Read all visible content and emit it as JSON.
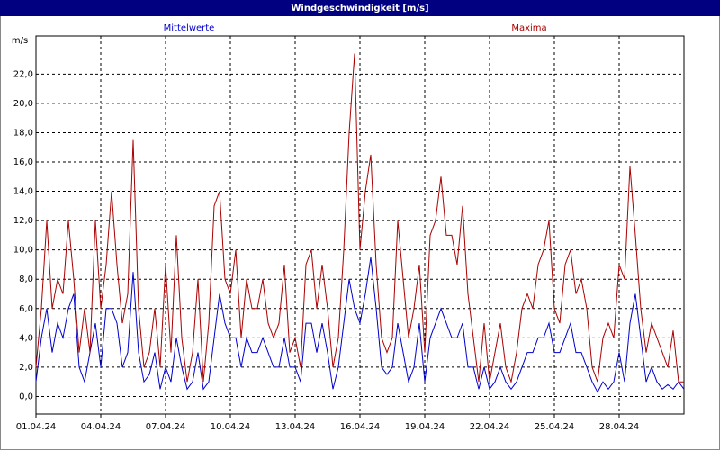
{
  "chart_data": {
    "type": "line",
    "title": "Windgeschwindigkeit [m/s]",
    "ylabel": "m/s",
    "x": [
      0,
      0.25,
      0.5,
      0.75,
      1,
      1.25,
      1.5,
      1.75,
      2,
      2.25,
      2.5,
      2.75,
      3,
      3.25,
      3.5,
      3.75,
      4,
      4.25,
      4.5,
      4.75,
      5,
      5.25,
      5.5,
      5.75,
      6,
      6.25,
      6.5,
      6.75,
      7,
      7.25,
      7.5,
      7.75,
      8,
      8.25,
      8.5,
      8.75,
      9,
      9.25,
      9.5,
      9.75,
      10,
      10.25,
      10.5,
      10.75,
      11,
      11.25,
      11.5,
      11.75,
      12,
      12.25,
      12.5,
      12.75,
      13,
      13.25,
      13.5,
      13.75,
      14,
      14.25,
      14.5,
      14.75,
      15,
      15.25,
      15.5,
      15.75,
      16,
      16.25,
      16.5,
      16.75,
      17,
      17.25,
      17.5,
      17.75,
      18,
      18.25,
      18.5,
      18.75,
      19,
      19.25,
      19.5,
      19.75,
      20,
      20.25,
      20.5,
      20.75,
      21,
      21.25,
      21.5,
      21.75,
      22,
      22.25,
      22.5,
      22.75,
      23,
      23.25,
      23.5,
      23.75,
      24,
      24.25,
      24.5,
      24.75,
      25,
      25.25,
      25.5,
      25.75,
      26,
      26.25,
      26.5,
      26.75,
      27,
      27.25,
      27.5,
      27.75,
      28,
      28.25,
      28.5,
      28.75,
      29,
      29.25,
      29.5,
      29.75,
      30
    ],
    "series": [
      {
        "name": "Mittelwerte",
        "color": "#0000cc",
        "values": [
          1,
          4,
          6,
          3,
          5,
          4,
          6,
          7,
          2,
          1,
          3,
          5,
          2,
          6,
          6,
          5,
          2,
          3,
          8.5,
          3,
          1,
          1.5,
          3,
          0.5,
          2,
          1,
          4,
          2,
          0.5,
          1,
          3,
          0.5,
          1,
          4,
          7,
          5,
          4,
          4,
          2,
          4,
          3,
          3,
          4,
          3,
          2,
          2,
          4,
          2,
          2,
          1,
          5,
          5,
          3,
          5,
          3,
          0.5,
          2,
          5,
          8,
          6,
          5,
          7,
          9.5,
          6,
          2,
          1.5,
          2,
          5,
          3,
          1,
          2,
          5,
          1,
          4,
          5,
          6,
          5,
          4,
          4,
          5,
          2,
          2,
          0.5,
          2,
          0.5,
          1,
          2,
          1,
          0.5,
          1,
          2,
          3,
          3,
          4,
          4,
          5,
          3,
          3,
          4,
          5,
          3,
          3,
          2,
          1,
          0.3,
          1,
          0.5,
          1,
          3,
          1,
          5,
          7,
          4,
          1,
          2,
          1,
          0.5,
          0.8,
          0.5,
          1,
          0.5
        ]
      },
      {
        "name": "Maxima",
        "color": "#aa0000",
        "values": [
          2,
          6,
          12,
          6,
          8,
          7,
          12,
          8,
          3,
          6,
          3,
          12,
          6,
          9,
          14,
          9,
          5,
          7,
          17.5,
          6,
          2,
          3,
          6,
          2,
          9,
          3,
          11,
          4,
          1,
          3,
          8,
          1,
          5,
          13,
          14,
          8,
          7,
          10,
          4,
          8,
          6,
          6,
          8,
          5,
          4,
          5,
          9,
          3,
          4,
          2,
          9,
          10,
          6,
          9,
          6,
          2,
          4,
          10,
          18,
          23.4,
          10,
          14,
          16.5,
          9,
          4,
          3,
          4,
          12,
          8,
          4,
          6,
          9,
          3,
          11,
          12,
          15,
          11,
          11,
          9,
          13,
          7,
          4,
          1,
          5,
          1,
          3,
          5,
          2,
          1,
          3,
          6,
          7,
          6,
          9,
          10,
          12,
          6,
          5,
          9,
          10,
          7,
          8,
          6,
          2,
          1,
          4,
          5,
          4,
          9,
          8,
          15.7,
          11,
          6,
          3,
          5,
          4,
          3,
          2,
          4.5,
          1,
          1
        ]
      }
    ],
    "xlim": [
      0,
      30
    ],
    "xticks": [
      {
        "value": 0,
        "label": "01.04.24"
      },
      {
        "value": 3,
        "label": "04.04.24"
      },
      {
        "value": 6,
        "label": "07.04.24"
      },
      {
        "value": 9,
        "label": "10.04.24"
      },
      {
        "value": 12,
        "label": "13.04.24"
      },
      {
        "value": 15,
        "label": "16.04.24"
      },
      {
        "value": 18,
        "label": "19.04.24"
      },
      {
        "value": 21,
        "label": "22.04.24"
      },
      {
        "value": 24,
        "label": "25.04.24"
      },
      {
        "value": 27,
        "label": "28.04.24"
      }
    ],
    "ylim": [
      -1.2,
      24.6
    ],
    "yticks": [
      {
        "value": 0,
        "label": "0,0"
      },
      {
        "value": 2,
        "label": "2,0"
      },
      {
        "value": 4,
        "label": "4,0"
      },
      {
        "value": 6,
        "label": "6,0"
      },
      {
        "value": 8,
        "label": "8,0"
      },
      {
        "value": 10,
        "label": "10,0"
      },
      {
        "value": 12,
        "label": "12,0"
      },
      {
        "value": 14,
        "label": "14,0"
      },
      {
        "value": 16,
        "label": "16,0"
      },
      {
        "value": 18,
        "label": "18,0"
      },
      {
        "value": 20,
        "label": "20,0"
      },
      {
        "value": 22,
        "label": "22,0"
      }
    ],
    "grid": true
  }
}
